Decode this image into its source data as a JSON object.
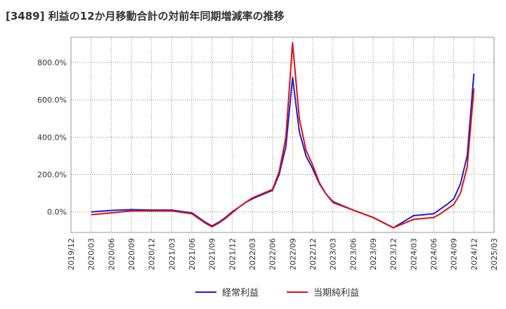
{
  "chart_data": {
    "type": "line",
    "title": "[3489]  利益の12か月移動合計の対前年同期増減率の推移",
    "xlabel": "",
    "ylabel": "",
    "ylim": [
      -110,
      935
    ],
    "y_ticks": [
      {
        "value": 0,
        "label": "0.0%"
      },
      {
        "value": 200,
        "label": "200.0%"
      },
      {
        "value": 400,
        "label": "400.0%"
      },
      {
        "value": 600,
        "label": "600.0%"
      },
      {
        "value": 800,
        "label": "800.0%"
      }
    ],
    "x_ticks": [
      "2019/12",
      "2020/03",
      "2020/06",
      "2020/09",
      "2020/12",
      "2021/03",
      "2021/06",
      "2021/09",
      "2021/12",
      "2022/03",
      "2022/06",
      "2022/09",
      "2022/12",
      "2023/03",
      "2023/06",
      "2023/09",
      "2023/12",
      "2024/03",
      "2024/06",
      "2024/09",
      "2024/12",
      "2025/03"
    ],
    "x_start": "2019/12",
    "x_end": "2025/03",
    "series": [
      {
        "name": "経常利益",
        "color": "#1f1fcf",
        "x": [
          "2020/03",
          "2020/06",
          "2020/09",
          "2020/12",
          "2021/03",
          "2021/06",
          "2021/07",
          "2021/08",
          "2021/09",
          "2021/10",
          "2021/11",
          "2021/12",
          "2022/01",
          "2022/02",
          "2022/03",
          "2022/04",
          "2022/05",
          "2022/06",
          "2022/07",
          "2022/08",
          "2022/09",
          "2022/10",
          "2022/11",
          "2022/12",
          "2023/01",
          "2023/02",
          "2023/03",
          "2023/06",
          "2023/09",
          "2023/12",
          "2024/03",
          "2024/06",
          "2024/07",
          "2024/08",
          "2024/09",
          "2024/10",
          "2024/11",
          "2024/12"
        ],
        "values": [
          0,
          8,
          12,
          10,
          10,
          -5,
          -30,
          -55,
          -75,
          -55,
          -30,
          0,
          25,
          50,
          70,
          85,
          100,
          115,
          200,
          350,
          720,
          430,
          300,
          230,
          150,
          95,
          55,
          10,
          -30,
          -85,
          -20,
          -10,
          15,
          40,
          70,
          150,
          300,
          740
        ]
      },
      {
        "name": "当期純利益",
        "color": "#dd1111",
        "x": [
          "2020/03",
          "2020/06",
          "2020/09",
          "2020/12",
          "2021/03",
          "2021/06",
          "2021/07",
          "2021/08",
          "2021/09",
          "2021/10",
          "2021/11",
          "2021/12",
          "2022/01",
          "2022/02",
          "2022/03",
          "2022/04",
          "2022/05",
          "2022/06",
          "2022/07",
          "2022/08",
          "2022/09",
          "2022/10",
          "2022/11",
          "2022/12",
          "2023/01",
          "2023/02",
          "2023/03",
          "2023/06",
          "2023/09",
          "2023/12",
          "2024/03",
          "2024/06",
          "2024/07",
          "2024/08",
          "2024/09",
          "2024/10",
          "2024/11",
          "2024/12"
        ],
        "values": [
          -15,
          -5,
          5,
          5,
          5,
          -10,
          -35,
          -60,
          -80,
          -60,
          -35,
          -5,
          25,
          50,
          75,
          90,
          105,
          120,
          215,
          400,
          905,
          500,
          330,
          250,
          155,
          95,
          50,
          10,
          -30,
          -85,
          -40,
          -30,
          -10,
          15,
          40,
          100,
          240,
          660
        ]
      }
    ],
    "legend": {
      "placement": "bottom-center",
      "entries": [
        "経常利益",
        "当期純利益"
      ]
    },
    "grid": {
      "x": true,
      "y": true,
      "style": "dotted"
    }
  }
}
